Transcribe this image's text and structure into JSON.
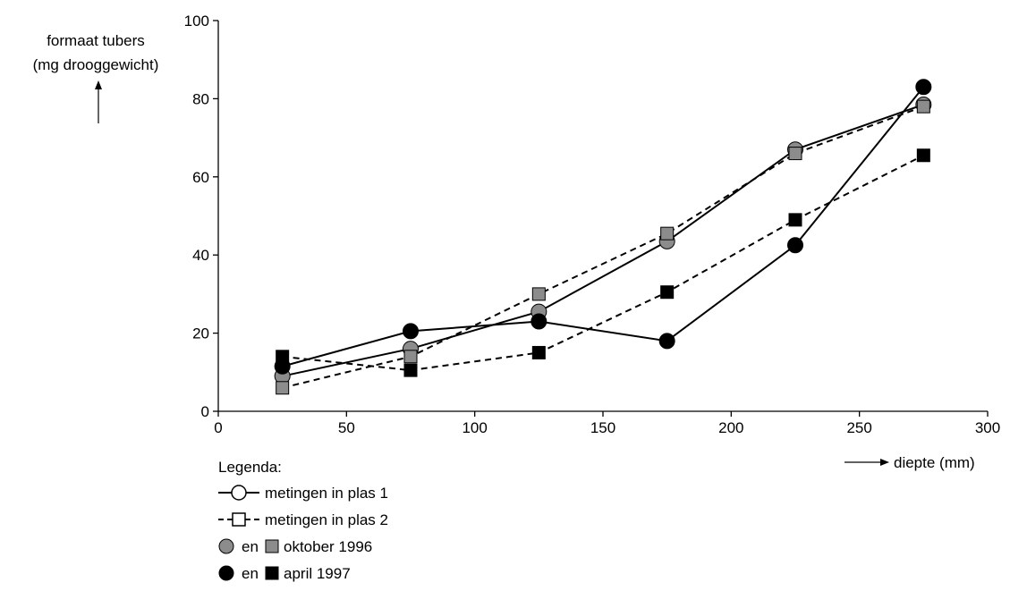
{
  "chart_data": {
    "type": "line",
    "ylabel_lines": [
      "formaat tubers",
      "(mg drooggewicht)"
    ],
    "xlabel": "diepte (mm)",
    "xlim": [
      0,
      300
    ],
    "ylim": [
      0,
      100
    ],
    "xticks": [
      0,
      50,
      100,
      150,
      200,
      250,
      300
    ],
    "yticks": [
      0,
      20,
      40,
      60,
      80,
      100
    ],
    "grid": false,
    "colors": {
      "oktober": "#8c8c8c",
      "april": "#000000"
    },
    "series": [
      {
        "plas": 1,
        "month": "oktober",
        "x": [
          25,
          75,
          125,
          175,
          225,
          275
        ],
        "y": [
          9,
          16,
          25.5,
          43.5,
          67,
          78.5
        ]
      },
      {
        "plas": 1,
        "month": "april",
        "x": [
          25,
          75,
          125,
          175,
          225,
          275
        ],
        "y": [
          11.5,
          20.5,
          23,
          18,
          42.5,
          83
        ]
      },
      {
        "plas": 2,
        "month": "oktober",
        "x": [
          25,
          75,
          125,
          175,
          225,
          275
        ],
        "y": [
          6,
          14,
          30,
          45.5,
          66,
          78
        ]
      },
      {
        "plas": 2,
        "month": "april",
        "x": [
          25,
          75,
          125,
          175,
          225,
          275
        ],
        "y": [
          14,
          10.5,
          15,
          30.5,
          49,
          65.5
        ]
      }
    ],
    "legend": {
      "title": "Legenda:",
      "line_items": [
        {
          "label": "metingen in plas 1",
          "style": "solid",
          "marker": "circle"
        },
        {
          "label": "metingen in plas 2",
          "style": "dashed",
          "marker": "square"
        }
      ],
      "color_items": [
        {
          "joiner": "en",
          "label": "oktober 1996",
          "month": "oktober"
        },
        {
          "joiner": "en",
          "label": "april 1997",
          "month": "april"
        }
      ]
    }
  }
}
